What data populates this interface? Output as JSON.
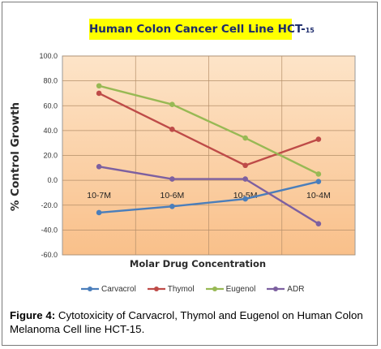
{
  "chart_data": {
    "type": "line",
    "title": "Human Colon Cancer Cell Line HCT-",
    "title_suffix": "15",
    "xlabel": "Molar Drug Concentration",
    "ylabel": "% Control Growth",
    "categories": [
      "10-7M",
      "10-6M",
      "10-5M",
      "10-4M"
    ],
    "ylim": [
      -60,
      100
    ],
    "yticks": [
      "100.0",
      "80.0",
      "60.0",
      "40.0",
      "20.0",
      "0.0",
      "-20.0",
      "-40.0",
      "-60.0"
    ],
    "grid": true,
    "legend": "bottom",
    "series": [
      {
        "name": "Carvacrol",
        "color": "#4a7ebb",
        "values": [
          -26,
          -21,
          -15,
          -1
        ]
      },
      {
        "name": "Thymol",
        "color": "#be4b48",
        "values": [
          70,
          41,
          12,
          33
        ]
      },
      {
        "name": "Eugenol",
        "color": "#98b954",
        "values": [
          76,
          61,
          34,
          5
        ]
      },
      {
        "name": "ADR",
        "color": "#7d60a0",
        "values": [
          11,
          1,
          1,
          -35
        ]
      }
    ],
    "background_colors": [
      "#fde4c8",
      "#f9c08a"
    ]
  },
  "caption": {
    "label": "Figure 4:",
    "text": "Cytotoxicity of Carvacrol, Thymol and Eugenol on Human Colon Melanoma Cell line HCT-15."
  }
}
